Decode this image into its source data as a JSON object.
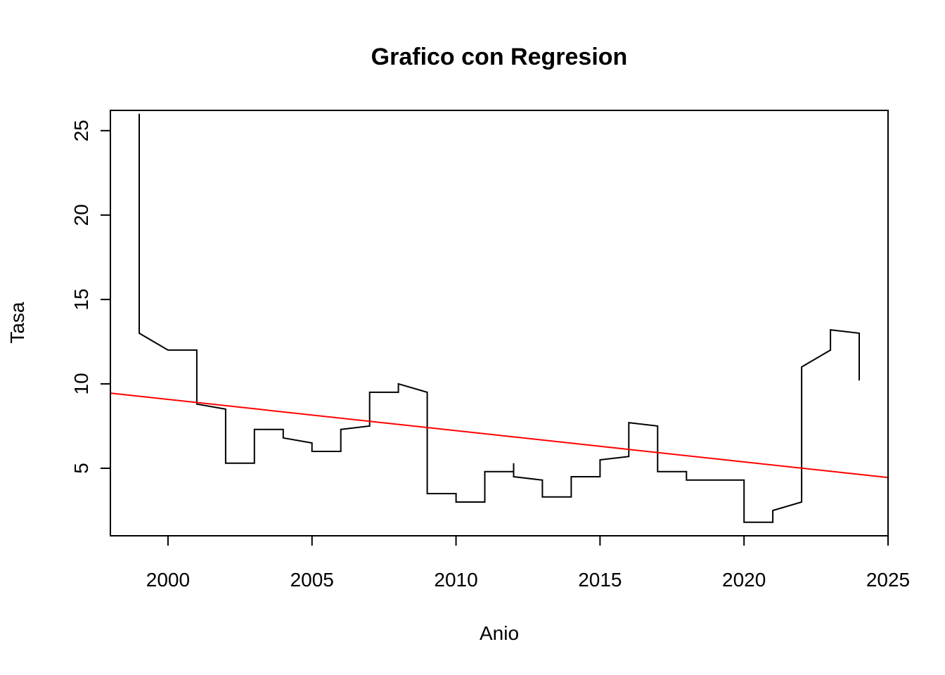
{
  "chart_data": {
    "type": "line",
    "title": "Grafico con Regresion",
    "xlabel": "Anio",
    "ylabel": "Tasa",
    "xlim": [
      1998,
      2025
    ],
    "ylim": [
      1,
      26.2
    ],
    "x_ticks": [
      2000,
      2005,
      2010,
      2015,
      2020,
      2025
    ],
    "y_ticks": [
      5,
      10,
      15,
      20,
      25
    ],
    "grid": false,
    "series": [
      {
        "color": "#000000",
        "points": [
          [
            1999,
            26.0
          ],
          [
            1999,
            13.0
          ],
          [
            2000,
            12.0
          ],
          [
            2001,
            12.0
          ],
          [
            2001,
            8.8
          ],
          [
            2002,
            8.5
          ],
          [
            2002,
            5.3
          ],
          [
            2003,
            5.3
          ],
          [
            2003,
            7.3
          ],
          [
            2004,
            7.3
          ],
          [
            2004,
            6.8
          ],
          [
            2005,
            6.5
          ],
          [
            2005,
            6.0
          ],
          [
            2006,
            6.0
          ],
          [
            2006,
            7.3
          ],
          [
            2007,
            7.5
          ],
          [
            2007,
            9.5
          ],
          [
            2008,
            9.5
          ],
          [
            2008,
            10.0
          ],
          [
            2009,
            9.5
          ],
          [
            2009,
            3.5
          ],
          [
            2010,
            3.5
          ],
          [
            2010,
            3.0
          ],
          [
            2011,
            3.0
          ],
          [
            2011,
            4.8
          ],
          [
            2012,
            4.8
          ],
          [
            2012,
            5.3
          ],
          [
            2012,
            4.5
          ],
          [
            2013,
            4.3
          ],
          [
            2013,
            3.3
          ],
          [
            2014,
            3.3
          ],
          [
            2014,
            4.5
          ],
          [
            2015,
            4.5
          ],
          [
            2015,
            5.5
          ],
          [
            2016,
            5.7
          ],
          [
            2016,
            7.7
          ],
          [
            2017,
            7.5
          ],
          [
            2017,
            4.8
          ],
          [
            2018,
            4.8
          ],
          [
            2018,
            4.3
          ],
          [
            2019,
            4.3
          ],
          [
            2020,
            4.3
          ],
          [
            2020,
            1.8
          ],
          [
            2021,
            1.8
          ],
          [
            2021,
            2.5
          ],
          [
            2022,
            3.0
          ],
          [
            2022,
            11.0
          ],
          [
            2023,
            12.0
          ],
          [
            2023,
            13.2
          ],
          [
            2024,
            13.0
          ],
          [
            2024,
            10.2
          ]
        ]
      }
    ],
    "regression": {
      "color": "#ff0000",
      "x": [
        1998,
        2025
      ],
      "y": [
        9.45,
        4.45
      ]
    }
  }
}
